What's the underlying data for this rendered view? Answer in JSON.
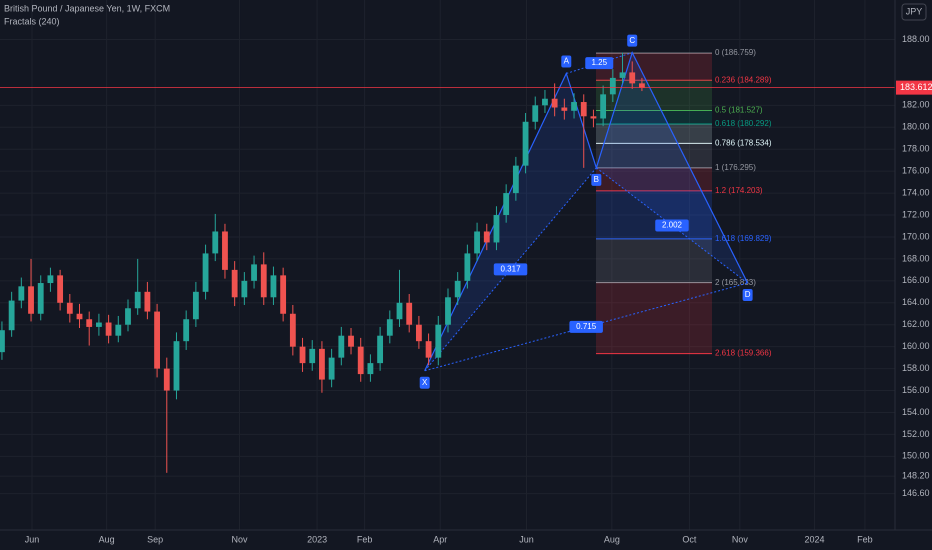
{
  "chart_data": {
    "type": "candlestick",
    "title": "British Pound / Japanese Yen, 1W, FXCM",
    "indicator": "Fractals (240)",
    "currency": "JPY",
    "up_color": "#26a69a",
    "down_color": "#ef5350",
    "grid": true,
    "last_price": 183.612,
    "ylim": [
      144.2,
      191.6
    ],
    "xlim": [
      -0.2,
      92.1
    ],
    "yticks": [
      {
        "value": 188,
        "label": "188.00"
      },
      {
        "value": 182,
        "label": "182.00"
      },
      {
        "value": 180,
        "label": "180.00"
      },
      {
        "value": 178,
        "label": "178.00"
      },
      {
        "value": 176,
        "label": "176.00"
      },
      {
        "value": 174,
        "label": "174.00"
      },
      {
        "value": 172,
        "label": "172.00"
      },
      {
        "value": 170,
        "label": "170.00"
      },
      {
        "value": 168,
        "label": "168.00"
      },
      {
        "value": 166,
        "label": "166.00"
      },
      {
        "value": 164,
        "label": "164.00"
      },
      {
        "value": 162,
        "label": "162.00"
      },
      {
        "value": 160,
        "label": "160.00"
      },
      {
        "value": 158,
        "label": "158.00"
      },
      {
        "value": 156,
        "label": "156.00"
      },
      {
        "value": 154,
        "label": "154.00"
      },
      {
        "value": 152,
        "label": "152.00"
      },
      {
        "value": 150,
        "label": "150.00"
      },
      {
        "value": 148.2,
        "label": "148.20"
      },
      {
        "value": 146.6,
        "label": "146.60"
      }
    ],
    "xticks": [
      {
        "value": 3.1,
        "label": "Jun"
      },
      {
        "value": 10.8,
        "label": "Aug"
      },
      {
        "value": 15.8,
        "label": "Sep"
      },
      {
        "value": 24.5,
        "label": "Nov"
      },
      {
        "value": 32.5,
        "label": "2023"
      },
      {
        "value": 37.4,
        "label": "Feb"
      },
      {
        "value": 45.2,
        "label": "Apr"
      },
      {
        "value": 54.1,
        "label": "Jun"
      },
      {
        "value": 62.9,
        "label": "Aug"
      },
      {
        "value": 70.9,
        "label": "Oct"
      },
      {
        "value": 76.1,
        "label": "Nov"
      },
      {
        "value": 83.8,
        "label": "2024"
      },
      {
        "value": 89,
        "label": "Feb"
      }
    ],
    "candles": [
      [
        159.5,
        162.3,
        158.8,
        161.5
      ],
      [
        161.5,
        165.0,
        160.9,
        164.2
      ],
      [
        164.2,
        166.3,
        163.5,
        165.5
      ],
      [
        165.5,
        168.0,
        162.3,
        163.0
      ],
      [
        163.0,
        166.5,
        162.4,
        165.8
      ],
      [
        165.8,
        167.2,
        165.0,
        166.5
      ],
      [
        166.5,
        167.0,
        163.3,
        164.0
      ],
      [
        164.0,
        164.8,
        162.2,
        163.0
      ],
      [
        163.0,
        163.9,
        161.7,
        162.5
      ],
      [
        162.5,
        163.2,
        160.1,
        161.8
      ],
      [
        161.8,
        163.0,
        161.0,
        162.2
      ],
      [
        162.2,
        162.9,
        160.3,
        161.0
      ],
      [
        161.0,
        162.8,
        160.4,
        162.0
      ],
      [
        162.0,
        164.3,
        161.4,
        163.5
      ],
      [
        163.5,
        168.0,
        162.9,
        165.0
      ],
      [
        165.0,
        165.9,
        162.5,
        163.2
      ],
      [
        163.2,
        163.9,
        157.2,
        158.0
      ],
      [
        158.0,
        159.0,
        148.5,
        156.0
      ],
      [
        156.0,
        161.3,
        155.2,
        160.5
      ],
      [
        160.5,
        163.3,
        159.7,
        162.5
      ],
      [
        162.5,
        165.9,
        161.8,
        165.0
      ],
      [
        165.0,
        169.3,
        164.3,
        168.5
      ],
      [
        168.5,
        172.1,
        167.8,
        170.5
      ],
      [
        170.5,
        171.2,
        166.2,
        167.0
      ],
      [
        167.0,
        167.8,
        163.7,
        164.5
      ],
      [
        164.5,
        166.8,
        163.8,
        166.0
      ],
      [
        166.0,
        168.3,
        165.3,
        167.5
      ],
      [
        167.5,
        168.6,
        163.8,
        164.5
      ],
      [
        164.5,
        167.3,
        163.8,
        166.5
      ],
      [
        166.5,
        167.2,
        162.3,
        163.0
      ],
      [
        163.0,
        163.8,
        159.2,
        160.0
      ],
      [
        160.0,
        160.8,
        157.7,
        158.5
      ],
      [
        158.5,
        160.6,
        157.8,
        159.8
      ],
      [
        159.8,
        160.5,
        155.8,
        157.0
      ],
      [
        157.0,
        159.8,
        156.3,
        159.0
      ],
      [
        159.0,
        161.8,
        158.3,
        161.0
      ],
      [
        161.0,
        161.7,
        159.3,
        160.0
      ],
      [
        160.0,
        160.8,
        156.8,
        157.5
      ],
      [
        157.5,
        159.3,
        156.8,
        158.5
      ],
      [
        158.5,
        161.8,
        157.8,
        161.0
      ],
      [
        161.0,
        163.3,
        160.3,
        162.5
      ],
      [
        162.5,
        167.0,
        161.8,
        164.0
      ],
      [
        164.0,
        164.8,
        161.3,
        162.0
      ],
      [
        162.0,
        162.8,
        159.8,
        160.5
      ],
      [
        160.5,
        161.2,
        158.3,
        159.0
      ],
      [
        159.0,
        162.8,
        158.3,
        162.0
      ],
      [
        162.0,
        165.3,
        161.3,
        164.5
      ],
      [
        164.5,
        166.8,
        163.8,
        166.0
      ],
      [
        166.0,
        169.3,
        165.3,
        168.5
      ],
      [
        168.5,
        171.3,
        167.8,
        170.5
      ],
      [
        170.5,
        171.2,
        168.8,
        169.5
      ],
      [
        169.5,
        172.8,
        168.8,
        172.0
      ],
      [
        172.0,
        174.8,
        171.3,
        174.0
      ],
      [
        174.0,
        177.3,
        173.3,
        176.5
      ],
      [
        176.5,
        181.3,
        175.8,
        180.5
      ],
      [
        180.5,
        182.8,
        179.8,
        182.0
      ],
      [
        182.0,
        183.4,
        181.3,
        182.6
      ],
      [
        182.6,
        184.0,
        181.0,
        181.8
      ],
      [
        181.8,
        182.6,
        180.7,
        181.5
      ],
      [
        181.5,
        183.1,
        180.8,
        182.3
      ],
      [
        182.3,
        183.0,
        176.3,
        181.0
      ],
      [
        181.0,
        181.6,
        180.0,
        180.8
      ],
      [
        180.8,
        183.8,
        180.1,
        183.0
      ],
      [
        183.0,
        185.3,
        182.3,
        184.5
      ],
      [
        184.5,
        186.8,
        184.0,
        185.0
      ],
      [
        185.0,
        186.0,
        183.5,
        184.0
      ],
      [
        184.0,
        184.5,
        183.3,
        183.6
      ]
    ],
    "fib": {
      "levels": [
        {
          "value": 186.759,
          "label": "0 (186.759)",
          "color": "#9598a1"
        },
        {
          "value": 184.289,
          "label": "0.236 (184.289)",
          "color": "#f23645"
        },
        {
          "value": 181.527,
          "label": "0.5 (181.527)",
          "color": "#4caf50"
        },
        {
          "value": 180.292,
          "label": "0.618 (180.292)",
          "color": "#089981"
        },
        {
          "value": 178.534,
          "label": "0.786 (178.534)",
          "color": "#e0f7fa"
        },
        {
          "value": 176.295,
          "label": "1 (176.295)",
          "color": "#9598a1"
        },
        {
          "value": 174.203,
          "label": "1.2 (174.203)",
          "color": "#f23645"
        },
        {
          "value": 169.829,
          "label": "1.618 (169.829)",
          "color": "#2962ff"
        },
        {
          "value": 165.833,
          "label": "2 (165.833)",
          "color": "#9598a1"
        },
        {
          "value": 159.366,
          "label": "2.618 (159.366)",
          "color": "#f23645"
        }
      ]
    },
    "pattern": {
      "color": "#2962ff",
      "points": [
        {
          "name": "X",
          "x": 43.6,
          "value": 157.8
        },
        {
          "name": "A",
          "x": 58.2,
          "value": 184.9
        },
        {
          "name": "B",
          "x": 61.3,
          "value": 176.3
        },
        {
          "name": "C",
          "x": 65.0,
          "value": 186.8
        },
        {
          "name": "D",
          "x": 76.9,
          "value": 165.8
        }
      ],
      "ratios": [
        {
          "label": "0.317",
          "from": 0,
          "to": 2
        },
        {
          "label": "1.25",
          "from": 1,
          "to": 3
        },
        {
          "label": "2.002",
          "from": 2,
          "to": 4
        },
        {
          "label": "0.715",
          "from": 0,
          "to": 4
        }
      ]
    }
  }
}
